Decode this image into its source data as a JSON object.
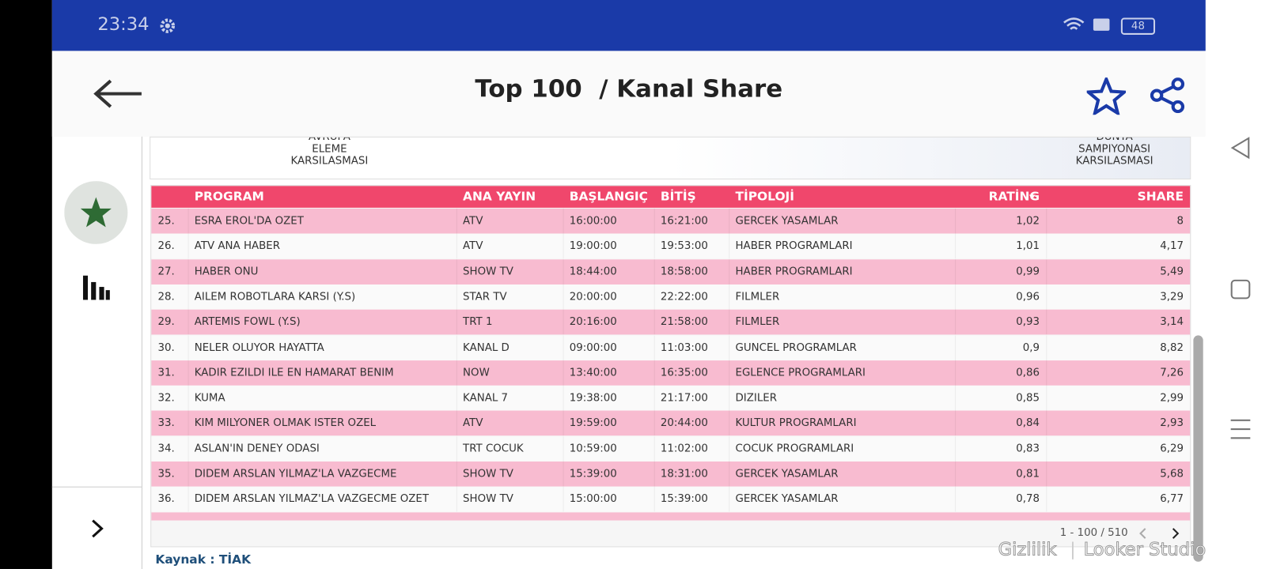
{
  "status_bar": {
    "time": "23:34",
    "battery": "48"
  },
  "header": {
    "title": "Top 100  / Kanal Share"
  },
  "banner": {
    "left": [
      "AVRUPA",
      "ELEME",
      "KARSILASMASI"
    ],
    "right": [
      "DUNYA",
      "SAMPIYONASI",
      "KARSILASMASI"
    ]
  },
  "table": {
    "columns": [
      "PROGRAM",
      "ANA YAYIN",
      "BAŞLANGIÇ",
      "BİTİŞ",
      "TİPOLOJİ",
      "RATİNG",
      "SHARE"
    ],
    "rows": [
      [
        "25.",
        "ESRA EROL'DA OZET",
        "ATV",
        "16:00:00",
        "16:21:00",
        "GERCEK YASAMLAR",
        "1,02",
        "8"
      ],
      [
        "26.",
        "ATV ANA HABER",
        "ATV",
        "19:00:00",
        "19:53:00",
        "HABER PROGRAMLARI",
        "1,01",
        "4,17"
      ],
      [
        "27.",
        "HABER ONU",
        "SHOW TV",
        "18:44:00",
        "18:58:00",
        "HABER PROGRAMLARI",
        "0,99",
        "5,49"
      ],
      [
        "28.",
        "AILEM ROBOTLARA KARSI (Y.S)",
        "STAR TV",
        "20:00:00",
        "22:22:00",
        "FILMLER",
        "0,96",
        "3,29"
      ],
      [
        "29.",
        "ARTEMIS FOWL (Y.S)",
        "TRT 1",
        "20:16:00",
        "21:58:00",
        "FILMLER",
        "0,93",
        "3,14"
      ],
      [
        "30.",
        "NELER OLUYOR HAYATTA",
        "KANAL D",
        "09:00:00",
        "11:03:00",
        "GUNCEL PROGRAMLAR",
        "0,9",
        "8,82"
      ],
      [
        "31.",
        "KADIR EZILDI ILE EN HAMARAT BENIM",
        "NOW",
        "13:40:00",
        "16:35:00",
        "EGLENCE PROGRAMLARI",
        "0,86",
        "7,26"
      ],
      [
        "32.",
        "KUMA",
        "KANAL 7",
        "19:38:00",
        "21:17:00",
        "DIZILER",
        "0,85",
        "2,99"
      ],
      [
        "33.",
        "KIM MILYONER OLMAK ISTER OZEL",
        "ATV",
        "19:59:00",
        "20:44:00",
        "KULTUR PROGRAMLARI",
        "0,84",
        "2,93"
      ],
      [
        "34.",
        "ASLAN'IN DENEY ODASI",
        "TRT COCUK",
        "10:59:00",
        "11:02:00",
        "COCUK PROGRAMLARI",
        "0,83",
        "6,29"
      ],
      [
        "35.",
        "DIDEM ARSLAN YILMAZ'LA VAZGECME",
        "SHOW TV",
        "15:39:00",
        "18:31:00",
        "GERCEK YASAMLAR",
        "0,81",
        "5,68"
      ],
      [
        "36.",
        "DIDEM ARSLAN YILMAZ'LA VAZGECME OZET",
        "SHOW TV",
        "15:00:00",
        "15:39:00",
        "GERCEK YASAMLAR",
        "0,78",
        "6,77"
      ]
    ]
  },
  "pagination": "1 - 100 / 510",
  "source": "Kaynak : TİAK",
  "footer_links": [
    "Gizlilik",
    "Looker Studio"
  ]
}
